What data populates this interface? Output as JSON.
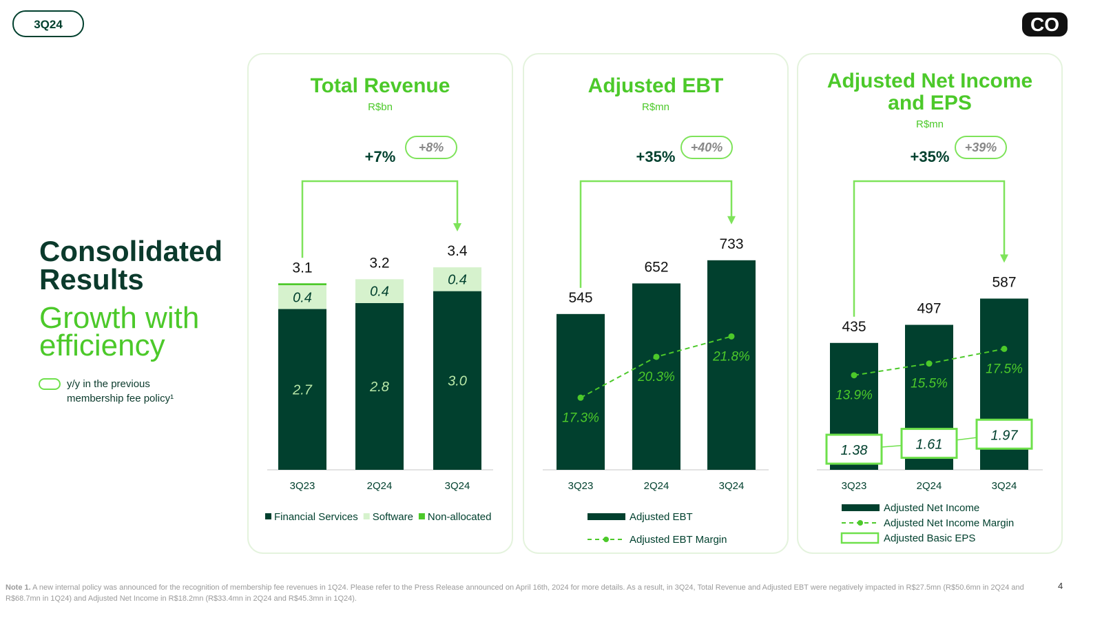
{
  "header": {
    "tag": "3Q24",
    "logo": "CO"
  },
  "intro": {
    "title": "Consolidated Results",
    "subtitle": "Growth with efficiency",
    "legend_note": "y/y in the previous membership fee policy¹"
  },
  "chart_data": [
    {
      "type": "stacked_bar",
      "title": "Total Revenue",
      "subtitle": "R$bn",
      "growth": "+7%",
      "growth_previous_policy": "+8%",
      "categories": [
        "3Q23",
        "2Q24",
        "3Q24"
      ],
      "series": [
        {
          "name": "Financial Services",
          "color": "#01402e",
          "values": [
            2.7,
            2.8,
            3.0
          ],
          "value_labels": [
            "2.7",
            "2.8",
            "3.0"
          ]
        },
        {
          "name": "Software",
          "color": "#d6f2cd",
          "values": [
            0.4,
            0.4,
            0.4
          ]
        },
        {
          "name": "Non-allocated",
          "color": "#4cc92a",
          "values": [
            0.02,
            0,
            0
          ]
        }
      ],
      "totals": [
        3.1,
        3.2,
        3.4
      ],
      "ylim": [
        0,
        4.8
      ],
      "legend": "bottom"
    },
    {
      "type": "combo",
      "title": "Adjusted EBT",
      "subtitle": "R$mn",
      "growth": "+35%",
      "growth_previous_policy": "+40%",
      "categories": [
        "3Q23",
        "2Q24",
        "3Q24"
      ],
      "series": [
        {
          "name": "Adjusted EBT",
          "type": "bar",
          "color": "#01402e",
          "values": [
            545,
            652,
            733
          ]
        },
        {
          "name": "Adjusted EBT Margin",
          "type": "line",
          "axis": "y2",
          "color": "#4cc92a",
          "values": [
            17.3,
            20.3,
            21.8
          ],
          "value_labels": [
            "17.3%",
            "20.3%",
            "21.8%"
          ]
        }
      ],
      "ylim": [
        0,
        1000
      ],
      "y2lim": [
        12,
        33
      ],
      "legend": "bottom"
    },
    {
      "type": "combo",
      "title": "Adjusted Net Income and EPS",
      "subtitle": "R$mn",
      "growth": "+35%",
      "growth_previous_policy": "+39%",
      "categories": [
        "3Q23",
        "2Q24",
        "3Q24"
      ],
      "series": [
        {
          "name": "Adjusted Net Income",
          "type": "bar",
          "color": "#01402e",
          "values": [
            435,
            497,
            587
          ]
        },
        {
          "name": "Adjusted Net Income Margin",
          "type": "line",
          "axis": "y2",
          "color": "#4cc92a",
          "values": [
            13.9,
            15.5,
            17.5
          ],
          "value_labels": [
            "13.9%",
            "15.5%",
            "17.5%"
          ]
        },
        {
          "name": "Adjusted Basic EPS",
          "type": "box",
          "axis": "y3",
          "color": "#6ee04b",
          "values": [
            1.38,
            1.61,
            1.97
          ]
        }
      ],
      "ylim": [
        0,
        980
      ],
      "y2lim": [
        1,
        40
      ],
      "y3lim": [
        0.57,
        11.8
      ],
      "legend": "bottom"
    }
  ],
  "footer": {
    "note_label": "Note 1.",
    "note": "A new internal policy was announced for the recognition of membership fee revenues in 1Q24. Please refer to the Press Release announced on April 16th, 2024 for more details. As a result, in 3Q24, Total Revenue and Adjusted EBT were negatively impacted in R$27.5mn (R$50.6mn in 2Q24 and R$68.7mn in 1Q24) and Adjusted Net Income in R$18.2mn (R$33.4mn in 2Q24 and R$45.3mn in 1Q24).",
    "page": "4"
  }
}
